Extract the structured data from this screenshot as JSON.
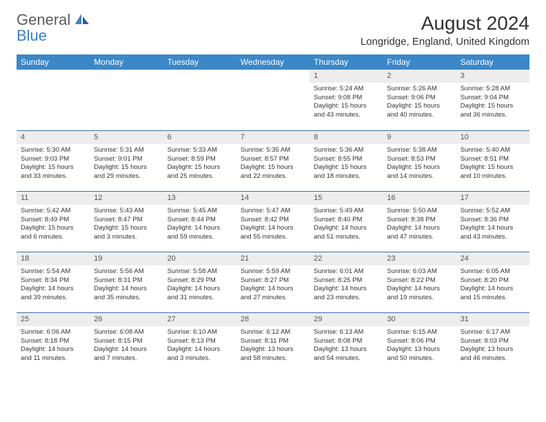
{
  "logo": {
    "text1": "General",
    "text2": "Blue"
  },
  "title": "August 2024",
  "location": "Longridge, England, United Kingdom",
  "columns": [
    "Sunday",
    "Monday",
    "Tuesday",
    "Wednesday",
    "Thursday",
    "Friday",
    "Saturday"
  ],
  "colors": {
    "header_bg": "#3b87c8",
    "header_text": "#ffffff",
    "daynum_bg": "#ededed",
    "row_border": "#3b6fa0",
    "text": "#333333",
    "logo_gray": "#5a5a5a",
    "logo_blue": "#3b7fc4"
  },
  "weeks": [
    [
      null,
      null,
      null,
      null,
      {
        "n": "1",
        "sr": "Sunrise: 5:24 AM",
        "ss": "Sunset: 9:08 PM",
        "d1": "Daylight: 15 hours",
        "d2": "and 43 minutes."
      },
      {
        "n": "2",
        "sr": "Sunrise: 5:26 AM",
        "ss": "Sunset: 9:06 PM",
        "d1": "Daylight: 15 hours",
        "d2": "and 40 minutes."
      },
      {
        "n": "3",
        "sr": "Sunrise: 5:28 AM",
        "ss": "Sunset: 9:04 PM",
        "d1": "Daylight: 15 hours",
        "d2": "and 36 minutes."
      }
    ],
    [
      {
        "n": "4",
        "sr": "Sunrise: 5:30 AM",
        "ss": "Sunset: 9:03 PM",
        "d1": "Daylight: 15 hours",
        "d2": "and 33 minutes."
      },
      {
        "n": "5",
        "sr": "Sunrise: 5:31 AM",
        "ss": "Sunset: 9:01 PM",
        "d1": "Daylight: 15 hours",
        "d2": "and 29 minutes."
      },
      {
        "n": "6",
        "sr": "Sunrise: 5:33 AM",
        "ss": "Sunset: 8:59 PM",
        "d1": "Daylight: 15 hours",
        "d2": "and 25 minutes."
      },
      {
        "n": "7",
        "sr": "Sunrise: 5:35 AM",
        "ss": "Sunset: 8:57 PM",
        "d1": "Daylight: 15 hours",
        "d2": "and 22 minutes."
      },
      {
        "n": "8",
        "sr": "Sunrise: 5:36 AM",
        "ss": "Sunset: 8:55 PM",
        "d1": "Daylight: 15 hours",
        "d2": "and 18 minutes."
      },
      {
        "n": "9",
        "sr": "Sunrise: 5:38 AM",
        "ss": "Sunset: 8:53 PM",
        "d1": "Daylight: 15 hours",
        "d2": "and 14 minutes."
      },
      {
        "n": "10",
        "sr": "Sunrise: 5:40 AM",
        "ss": "Sunset: 8:51 PM",
        "d1": "Daylight: 15 hours",
        "d2": "and 10 minutes."
      }
    ],
    [
      {
        "n": "11",
        "sr": "Sunrise: 5:42 AM",
        "ss": "Sunset: 8:49 PM",
        "d1": "Daylight: 15 hours",
        "d2": "and 6 minutes."
      },
      {
        "n": "12",
        "sr": "Sunrise: 5:43 AM",
        "ss": "Sunset: 8:47 PM",
        "d1": "Daylight: 15 hours",
        "d2": "and 3 minutes."
      },
      {
        "n": "13",
        "sr": "Sunrise: 5:45 AM",
        "ss": "Sunset: 8:44 PM",
        "d1": "Daylight: 14 hours",
        "d2": "and 59 minutes."
      },
      {
        "n": "14",
        "sr": "Sunrise: 5:47 AM",
        "ss": "Sunset: 8:42 PM",
        "d1": "Daylight: 14 hours",
        "d2": "and 55 minutes."
      },
      {
        "n": "15",
        "sr": "Sunrise: 5:49 AM",
        "ss": "Sunset: 8:40 PM",
        "d1": "Daylight: 14 hours",
        "d2": "and 51 minutes."
      },
      {
        "n": "16",
        "sr": "Sunrise: 5:50 AM",
        "ss": "Sunset: 8:38 PM",
        "d1": "Daylight: 14 hours",
        "d2": "and 47 minutes."
      },
      {
        "n": "17",
        "sr": "Sunrise: 5:52 AM",
        "ss": "Sunset: 8:36 PM",
        "d1": "Daylight: 14 hours",
        "d2": "and 43 minutes."
      }
    ],
    [
      {
        "n": "18",
        "sr": "Sunrise: 5:54 AM",
        "ss": "Sunset: 8:34 PM",
        "d1": "Daylight: 14 hours",
        "d2": "and 39 minutes."
      },
      {
        "n": "19",
        "sr": "Sunrise: 5:56 AM",
        "ss": "Sunset: 8:31 PM",
        "d1": "Daylight: 14 hours",
        "d2": "and 35 minutes."
      },
      {
        "n": "20",
        "sr": "Sunrise: 5:58 AM",
        "ss": "Sunset: 8:29 PM",
        "d1": "Daylight: 14 hours",
        "d2": "and 31 minutes."
      },
      {
        "n": "21",
        "sr": "Sunrise: 5:59 AM",
        "ss": "Sunset: 8:27 PM",
        "d1": "Daylight: 14 hours",
        "d2": "and 27 minutes."
      },
      {
        "n": "22",
        "sr": "Sunrise: 6:01 AM",
        "ss": "Sunset: 8:25 PM",
        "d1": "Daylight: 14 hours",
        "d2": "and 23 minutes."
      },
      {
        "n": "23",
        "sr": "Sunrise: 6:03 AM",
        "ss": "Sunset: 8:22 PM",
        "d1": "Daylight: 14 hours",
        "d2": "and 19 minutes."
      },
      {
        "n": "24",
        "sr": "Sunrise: 6:05 AM",
        "ss": "Sunset: 8:20 PM",
        "d1": "Daylight: 14 hours",
        "d2": "and 15 minutes."
      }
    ],
    [
      {
        "n": "25",
        "sr": "Sunrise: 6:06 AM",
        "ss": "Sunset: 8:18 PM",
        "d1": "Daylight: 14 hours",
        "d2": "and 11 minutes."
      },
      {
        "n": "26",
        "sr": "Sunrise: 6:08 AM",
        "ss": "Sunset: 8:15 PM",
        "d1": "Daylight: 14 hours",
        "d2": "and 7 minutes."
      },
      {
        "n": "27",
        "sr": "Sunrise: 6:10 AM",
        "ss": "Sunset: 8:13 PM",
        "d1": "Daylight: 14 hours",
        "d2": "and 3 minutes."
      },
      {
        "n": "28",
        "sr": "Sunrise: 6:12 AM",
        "ss": "Sunset: 8:11 PM",
        "d1": "Daylight: 13 hours",
        "d2": "and 58 minutes."
      },
      {
        "n": "29",
        "sr": "Sunrise: 6:13 AM",
        "ss": "Sunset: 8:08 PM",
        "d1": "Daylight: 13 hours",
        "d2": "and 54 minutes."
      },
      {
        "n": "30",
        "sr": "Sunrise: 6:15 AM",
        "ss": "Sunset: 8:06 PM",
        "d1": "Daylight: 13 hours",
        "d2": "and 50 minutes."
      },
      {
        "n": "31",
        "sr": "Sunrise: 6:17 AM",
        "ss": "Sunset: 8:03 PM",
        "d1": "Daylight: 13 hours",
        "d2": "and 46 minutes."
      }
    ]
  ]
}
